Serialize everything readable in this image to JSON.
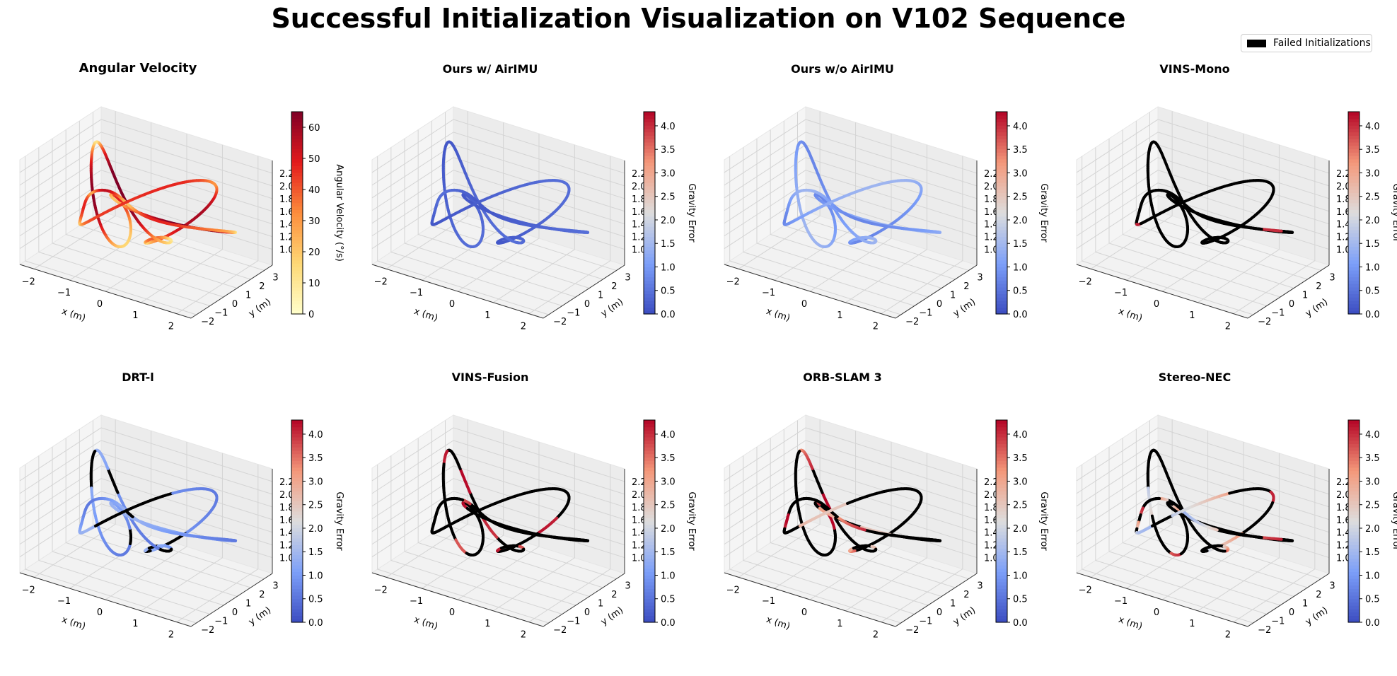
{
  "figure": {
    "title": "Successful Initialization Visualization on V102 Sequence",
    "legend_label": "Failed Initializations",
    "legend_color": "#000000"
  },
  "chart_data": [
    {
      "type": "line3d",
      "title": "Angular Velocity",
      "xlabel": "x (m)",
      "ylabel": "y (m)",
      "xticks": [
        "−2",
        "−1",
        "0",
        "1",
        "2"
      ],
      "yticks": [
        "−2",
        "−1",
        "0",
        "1",
        "2",
        "3"
      ],
      "zticks": [
        "1.0",
        "1.2",
        "1.4",
        "1.6",
        "1.8",
        "2.0",
        "2.2"
      ],
      "colorbar": {
        "label": "Angular Velocity (°/s)",
        "colormap": "YlOrRd",
        "range": [
          0,
          65
        ],
        "ticks": [
          "0",
          "10",
          "20",
          "30",
          "40",
          "50",
          "60"
        ]
      },
      "trajectory": {
        "color_mode": "velocity"
      }
    },
    {
      "type": "line3d",
      "title": "Ours w/ AirIMU",
      "xlabel": "x (m)",
      "ylabel": "y (m)",
      "xticks": [
        "−2",
        "−1",
        "0",
        "1",
        "2"
      ],
      "yticks": [
        "−2",
        "−1",
        "0",
        "1",
        "2",
        "3"
      ],
      "zticks": [
        "1.0",
        "1.2",
        "1.4",
        "1.6",
        "1.8",
        "2.0",
        "2.2"
      ],
      "colorbar": {
        "label": "Gravity Error",
        "colormap": "coolwarm",
        "range": [
          0,
          4.3
        ],
        "ticks": [
          "0.0",
          "0.5",
          "1.0",
          "1.5",
          "2.0",
          "2.5",
          "3.0",
          "3.5",
          "4.0"
        ]
      },
      "trajectory": {
        "color_mode": "error",
        "error_base": 0.3,
        "error_spread": 0.15,
        "failed_fraction": 0
      }
    },
    {
      "type": "line3d",
      "title": "Ours w/o AirIMU",
      "xlabel": "x (m)",
      "ylabel": "y (m)",
      "xticks": [
        "−2",
        "−1",
        "0",
        "1",
        "2"
      ],
      "yticks": [
        "−2",
        "−1",
        "0",
        "1",
        "2",
        "3"
      ],
      "zticks": [
        "1.0",
        "1.2",
        "1.4",
        "1.6",
        "1.8",
        "2.0",
        "2.2"
      ],
      "colorbar": {
        "label": "Gravity Error",
        "colormap": "coolwarm",
        "range": [
          0,
          4.3
        ],
        "ticks": [
          "0.0",
          "0.5",
          "1.0",
          "1.5",
          "2.0",
          "2.5",
          "3.0",
          "3.5",
          "4.0"
        ]
      },
      "trajectory": {
        "color_mode": "error",
        "error_base": 1.1,
        "error_spread": 0.35,
        "failed_fraction": 0
      }
    },
    {
      "type": "line3d",
      "title": "VINS-Mono",
      "xlabel": "x (m)",
      "ylabel": "y (m)",
      "xticks": [
        "−2",
        "−1",
        "0",
        "1",
        "2"
      ],
      "yticks": [
        "−2",
        "−1",
        "0",
        "1",
        "2",
        "3"
      ],
      "zticks": [
        "1.0",
        "1.2",
        "1.4",
        "1.6",
        "1.8",
        "2.0",
        "2.2"
      ],
      "colorbar": {
        "label": "Gravity Error",
        "colormap": "coolwarm",
        "range": [
          0,
          4.3
        ],
        "ticks": [
          "0.0",
          "0.5",
          "1.0",
          "1.5",
          "2.0",
          "2.5",
          "3.0",
          "3.5",
          "4.0"
        ]
      },
      "trajectory": {
        "color_mode": "error",
        "error_base": 4.1,
        "error_spread": 0.1,
        "failed_fraction": 0.97
      }
    },
    {
      "type": "line3d",
      "title": "DRT-l",
      "xlabel": "x (m)",
      "ylabel": "y (m)",
      "xticks": [
        "−2",
        "−1",
        "0",
        "1",
        "2"
      ],
      "yticks": [
        "−2",
        "−1",
        "0",
        "1",
        "2",
        "3"
      ],
      "zticks": [
        "1.0",
        "1.2",
        "1.4",
        "1.6",
        "1.8",
        "2.0",
        "2.2"
      ],
      "colorbar": {
        "label": "Gravity Error",
        "colormap": "coolwarm",
        "range": [
          0,
          4.3
        ],
        "ticks": [
          "0.0",
          "0.5",
          "1.0",
          "1.5",
          "2.0",
          "2.5",
          "3.0",
          "3.5",
          "4.0"
        ]
      },
      "trajectory": {
        "color_mode": "error",
        "error_base": 1.0,
        "error_spread": 0.4,
        "failed_fraction": 0.22
      }
    },
    {
      "type": "line3d",
      "title": "VINS-Fusion",
      "xlabel": "x (m)",
      "ylabel": "y (m)",
      "xticks": [
        "−2",
        "−1",
        "0",
        "1",
        "2"
      ],
      "yticks": [
        "−2",
        "−1",
        "0",
        "1",
        "2",
        "3"
      ],
      "zticks": [
        "1.0",
        "1.2",
        "1.4",
        "1.6",
        "1.8",
        "2.0",
        "2.2"
      ],
      "colorbar": {
        "label": "Gravity Error",
        "colormap": "coolwarm",
        "range": [
          0,
          4.3
        ],
        "ticks": [
          "0.0",
          "0.5",
          "1.0",
          "1.5",
          "2.0",
          "2.5",
          "3.0",
          "3.5",
          "4.0"
        ]
      },
      "trajectory": {
        "color_mode": "error",
        "error_base": 4.0,
        "error_spread": 0.3,
        "failed_fraction": 0.82
      }
    },
    {
      "type": "line3d",
      "title": "ORB-SLAM 3",
      "xlabel": "x (m)",
      "ylabel": "y (m)",
      "xticks": [
        "−2",
        "−1",
        "0",
        "1",
        "2"
      ],
      "yticks": [
        "−2",
        "−1",
        "0",
        "1",
        "2",
        "3"
      ],
      "zticks": [
        "1.0",
        "1.2",
        "1.4",
        "1.6",
        "1.8",
        "2.0",
        "2.2"
      ],
      "colorbar": {
        "label": "Gravity Error",
        "colormap": "coolwarm",
        "range": [
          0,
          4.3
        ],
        "ticks": [
          "0.0",
          "0.5",
          "1.0",
          "1.5",
          "2.0",
          "2.5",
          "3.0",
          "3.5",
          "4.0"
        ]
      },
      "trajectory": {
        "color_mode": "error",
        "error_base": 3.4,
        "error_spread": 0.9,
        "failed_fraction": 0.72
      }
    },
    {
      "type": "line3d",
      "title": "Stereo-NEC",
      "xlabel": "x (m)",
      "ylabel": "y (m)",
      "xticks": [
        "−2",
        "−1",
        "0",
        "1",
        "2"
      ],
      "yticks": [
        "−2",
        "−1",
        "0",
        "1",
        "2",
        "3"
      ],
      "zticks": [
        "1.0",
        "1.2",
        "1.4",
        "1.6",
        "1.8",
        "2.0",
        "2.2"
      ],
      "colorbar": {
        "label": "Gravity Error",
        "colormap": "coolwarm",
        "range": [
          0,
          4.3
        ],
        "ticks": [
          "0.0",
          "0.5",
          "1.0",
          "1.5",
          "2.0",
          "2.5",
          "3.0",
          "3.5",
          "4.0"
        ]
      },
      "trajectory": {
        "color_mode": "error",
        "error_base": 2.8,
        "error_spread": 1.3,
        "failed_fraction": 0.72
      }
    }
  ]
}
